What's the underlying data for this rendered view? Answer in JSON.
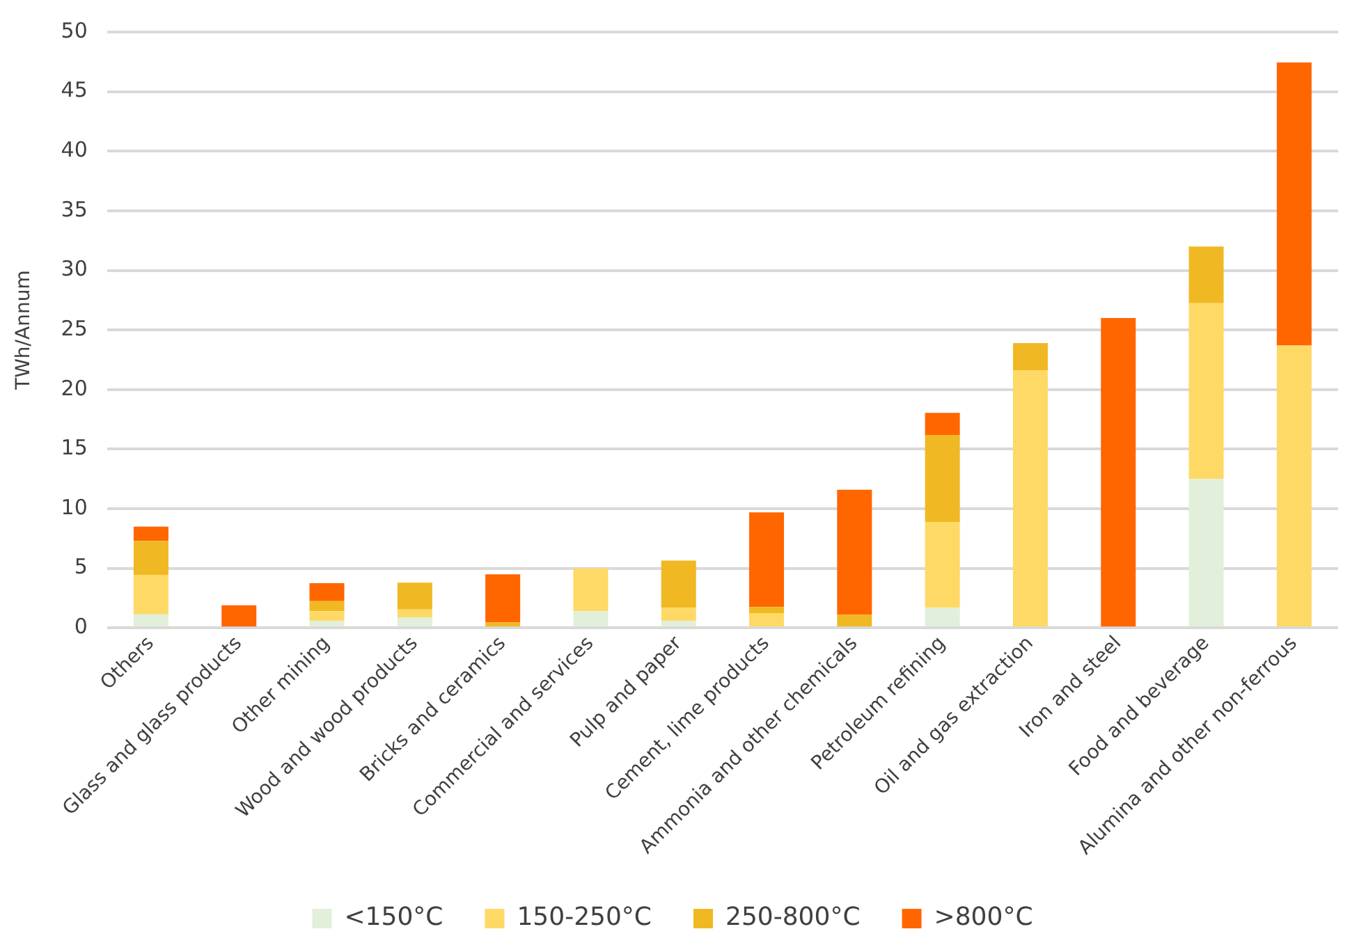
{
  "chart_data": {
    "type": "bar",
    "stacked": true,
    "ylabel": "TWh/Annum",
    "categories": [
      "Others",
      "Glass and glass products",
      "Other mining",
      "Wood and wood products",
      "Bricks and ceramics",
      "Commercial and services",
      "Pulp and paper",
      "Cement, lime products",
      "Ammonia and other chemicals",
      "Petroleum refining",
      "Oil and gas extraction",
      "Iron and steel",
      "Food and beverage",
      "Alumina and other non-ferrous"
    ],
    "series": [
      {
        "name": "<150°C",
        "color": "#e2efda",
        "values": [
          1.15,
          0,
          0.6,
          0.9,
          0,
          1.4,
          0.6,
          0,
          0,
          1.7,
          0,
          0,
          12.5,
          0
        ]
      },
      {
        "name": "150-250°C",
        "color": "#ffd966",
        "values": [
          3.3,
          0,
          0.8,
          0.65,
          0,
          3.6,
          1.1,
          1.25,
          0,
          7.2,
          21.6,
          0,
          14.75,
          23.7
        ]
      },
      {
        "name": "250-800°C",
        "color": "#f0b923",
        "values": [
          2.85,
          0,
          0.85,
          2.25,
          0.45,
          0,
          3.95,
          0.5,
          1.1,
          7.3,
          2.3,
          0,
          4.75,
          0
        ]
      },
      {
        "name": ">800°C",
        "color": "#ff6600",
        "values": [
          1.2,
          1.9,
          1.5,
          0,
          4.05,
          0,
          0,
          7.95,
          10.5,
          1.85,
          0,
          26,
          0,
          23.75
        ]
      }
    ],
    "ylim": [
      0,
      50
    ],
    "yticks": [
      0,
      5,
      10,
      15,
      20,
      25,
      30,
      35,
      40,
      45,
      50
    ],
    "grid": "y",
    "legend": "bottom"
  }
}
